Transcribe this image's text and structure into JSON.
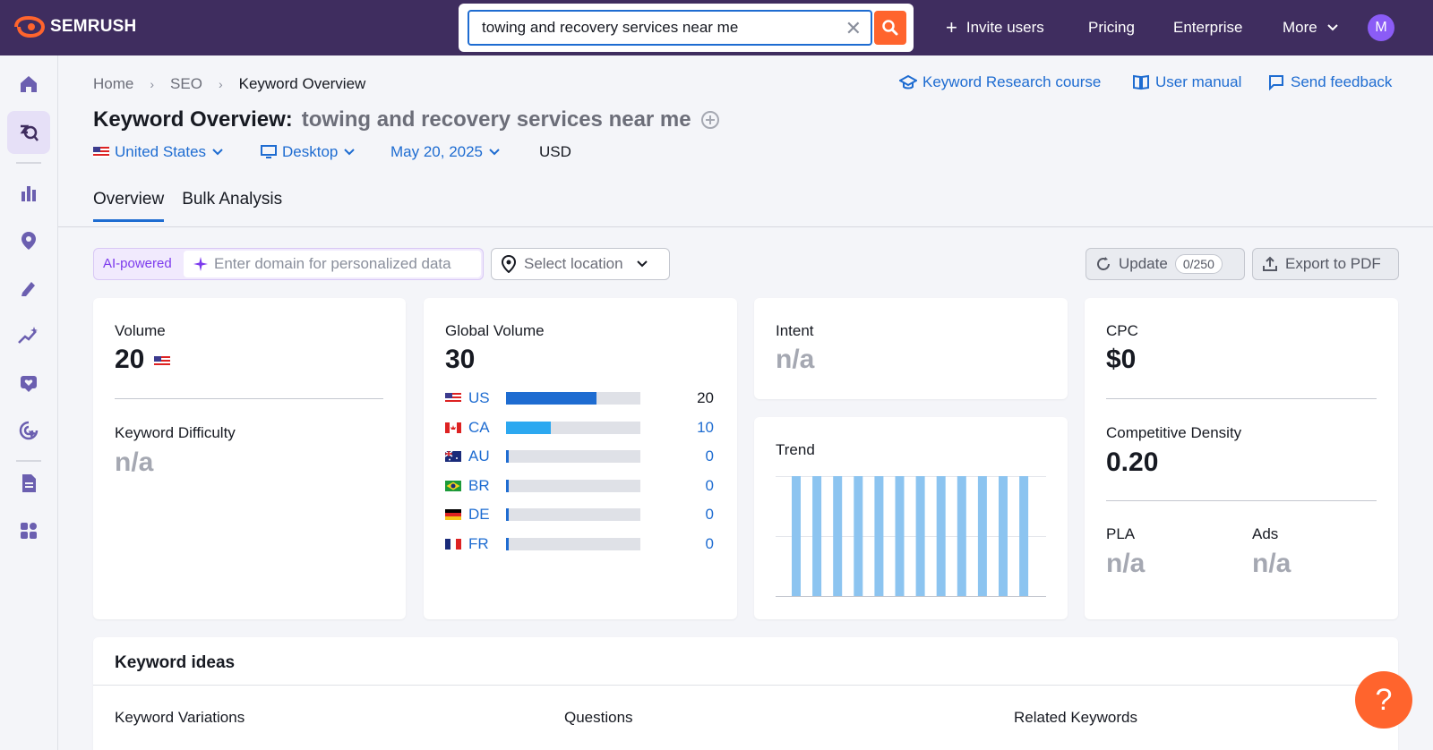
{
  "app": {
    "brand": "SEMRUSH"
  },
  "search": {
    "value": "towing and recovery services near me",
    "clear_icon": "close-icon",
    "submit_icon": "search-icon"
  },
  "topnav": {
    "invite": "Invite users",
    "pricing": "Pricing",
    "enterprise": "Enterprise",
    "more": "More",
    "avatar_letter": "M"
  },
  "breadcrumb": {
    "home": "Home",
    "seo": "SEO",
    "current": "Keyword Overview"
  },
  "header_links": {
    "course": "Keyword Research course",
    "manual": "User manual",
    "feedback": "Send feedback"
  },
  "page": {
    "title": "Keyword Overview:",
    "keyword": "towing and recovery services near me"
  },
  "filters": {
    "country": "United States",
    "device": "Desktop",
    "date": "May 20, 2025",
    "currency": "USD"
  },
  "tabs": [
    {
      "label": "Overview"
    },
    {
      "label": "Bulk Analysis"
    }
  ],
  "toolbar": {
    "ai_badge": "AI-powered",
    "domain_placeholder": "Enter domain for personalized data",
    "location_placeholder": "Select location",
    "update_label": "Update",
    "update_count": "0/250",
    "export_label": "Export to PDF"
  },
  "volume": {
    "label": "Volume",
    "value": "20",
    "kd_label": "Keyword Difficulty",
    "kd_value": "n/a"
  },
  "global_volume": {
    "label": "Global Volume",
    "value": "30",
    "rows": [
      {
        "code": "US",
        "value": "20",
        "fill": 0.67,
        "color": "#1e6cd1"
      },
      {
        "code": "CA",
        "value": "10",
        "fill": 0.33,
        "color": "#2ca8f0"
      },
      {
        "code": "AU",
        "value": "0",
        "fill": 0.0,
        "color": "#1e6cd1"
      },
      {
        "code": "BR",
        "value": "0",
        "fill": 0.0,
        "color": "#1e6cd1"
      },
      {
        "code": "DE",
        "value": "0",
        "fill": 0.0,
        "color": "#1e6cd1"
      },
      {
        "code": "FR",
        "value": "0",
        "fill": 0.0,
        "color": "#1e6cd1"
      }
    ]
  },
  "intent": {
    "label": "Intent",
    "value": "n/a"
  },
  "trend": {
    "label": "Trend",
    "values": [
      1,
      1,
      1,
      1,
      1,
      1,
      1,
      1,
      1,
      1,
      1,
      1
    ],
    "bar_color": "#8cc4f0"
  },
  "cpc": {
    "label": "CPC",
    "value": "$0",
    "density_label": "Competitive Density",
    "density_value": "0.20",
    "pla_label": "PLA",
    "pla_value": "n/a",
    "ads_label": "Ads",
    "ads_value": "n/a"
  },
  "keyword_ideas": {
    "title": "Keyword ideas",
    "variations": "Keyword Variations",
    "questions": "Questions",
    "related": "Related Keywords"
  },
  "help": {
    "label": "?"
  },
  "colors": {
    "topbar": "#3f2d5f",
    "accent": "#1e6cd1",
    "brand_orange": "#ff642d"
  }
}
